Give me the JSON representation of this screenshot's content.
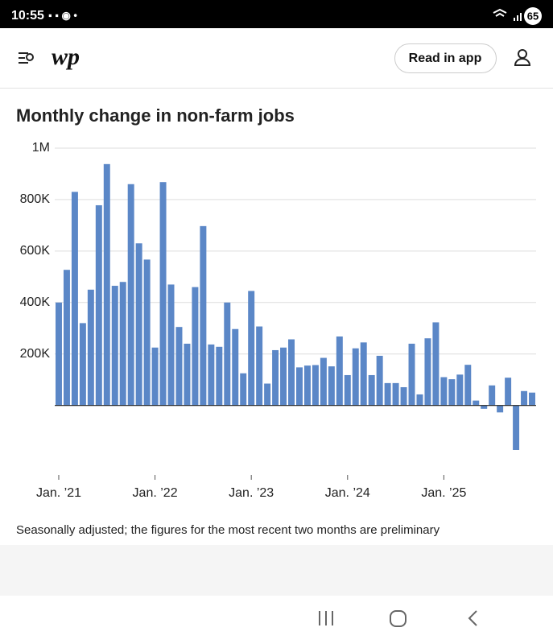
{
  "status_bar": {
    "time": "10:55",
    "battery": "65"
  },
  "header": {
    "logo": "wp",
    "button": "Read in app"
  },
  "chart_data": {
    "type": "bar",
    "title": "Monthly change in non-farm jobs",
    "note": "Seasonally adjusted; the figures for the most recent two months are preliminary",
    "categories": [
      "Jan. ’21",
      null,
      null,
      null,
      null,
      null,
      null,
      null,
      null,
      null,
      null,
      null,
      "Jan. ’22",
      null,
      null,
      null,
      null,
      null,
      null,
      null,
      null,
      null,
      null,
      null,
      "Jan. ’23",
      null,
      null,
      null,
      null,
      null,
      null,
      null,
      null,
      null,
      null,
      null,
      "Jan. ’24",
      null,
      null,
      null,
      null,
      null,
      null,
      null,
      null,
      null,
      null,
      null,
      "Jan. ’25",
      null,
      null,
      null,
      null,
      null,
      null,
      null,
      null,
      null,
      null,
      null
    ],
    "values": [
      400000,
      527000,
      830000,
      320000,
      450000,
      778000,
      938000,
      465000,
      480000,
      860000,
      630000,
      567000,
      225000,
      868000,
      470000,
      305000,
      240000,
      460000,
      697000,
      237000,
      228000,
      400000,
      297000,
      125000,
      445000,
      307000,
      85000,
      215000,
      225000,
      257000,
      148000,
      155000,
      157000,
      185000,
      152000,
      268000,
      118000,
      222000,
      245000,
      118000,
      193000,
      87000,
      87000,
      71000,
      240000,
      43000,
      261000,
      323000,
      110000,
      102000,
      120000,
      158000,
      19000,
      -13000,
      78000,
      -27000,
      108000,
      -173000,
      56000,
      50000
    ],
    "color": "#5b87c7",
    "ylim": [
      -270000,
      1000000
    ],
    "yticks": [
      {
        "value": 200000,
        "label": "200K"
      },
      {
        "value": 400000,
        "label": "400K"
      },
      {
        "value": 600000,
        "label": "600K"
      },
      {
        "value": 800000,
        "label": "800K"
      },
      {
        "value": 1000000,
        "label": "1M"
      }
    ],
    "grid": true
  }
}
